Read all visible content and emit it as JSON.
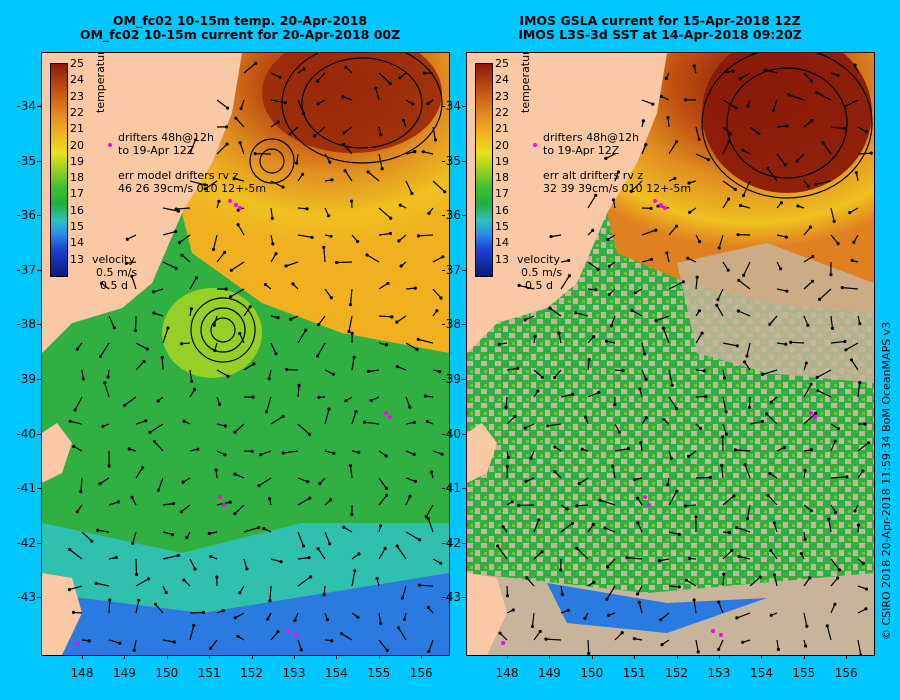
{
  "left_panel": {
    "title_line1": "OM_fc02 10-15m temp. 20-Apr-2018",
    "title_line2": "OM_fc02 10-15m current for 20-Apr-2018 00Z",
    "drifters_line1": "drifters 48h@12h",
    "drifters_line2": "to 19-Apr 12Z",
    "err_line1": "err model drifters rv z",
    "err_line2": "46 26 39cm/s 010 12+-5m",
    "velocity_label": "velocity",
    "velocity_scale": "0.5 m/s",
    "velocity_time": "0.5 d"
  },
  "right_panel": {
    "title_line1": "IMOS GSLA current for 15-Apr-2018 12Z",
    "title_line2": "IMOS L3S-3d SST at 14-Apr-2018 09:20Z",
    "drifters_line1": "drifters 48h@12h",
    "drifters_line2": "to 19-Apr 12Z",
    "err_line1": "err alt drifters rv z",
    "err_line2": "32 39 39cm/s 010 12+-5m",
    "velocity_label": "velocity",
    "velocity_scale": "0.5 m/s",
    "velocity_time": "0.5 d"
  },
  "colorbar": {
    "unit": "temperature (°C)",
    "ticks": [
      "25",
      "24",
      "23",
      "22",
      "21",
      "20",
      "19",
      "18",
      "17",
      "16",
      "15",
      "14",
      "13"
    ]
  },
  "y_ticks": [
    "-34",
    "-35",
    "-36",
    "-37",
    "-38",
    "-39",
    "-40",
    "-41",
    "-42",
    "-43"
  ],
  "x_ticks": [
    "148",
    "149",
    "150",
    "151",
    "152",
    "153",
    "154",
    "155",
    "156"
  ],
  "credit": "© CSIRO 2018  20-Apr-2018 11:59:34 BoM OceanMAPS v3",
  "colors": {
    "background": "#00c8ff",
    "land": "#f9c9a5",
    "cloud": "#c8b49a",
    "drifter": "#ff00ff"
  }
}
